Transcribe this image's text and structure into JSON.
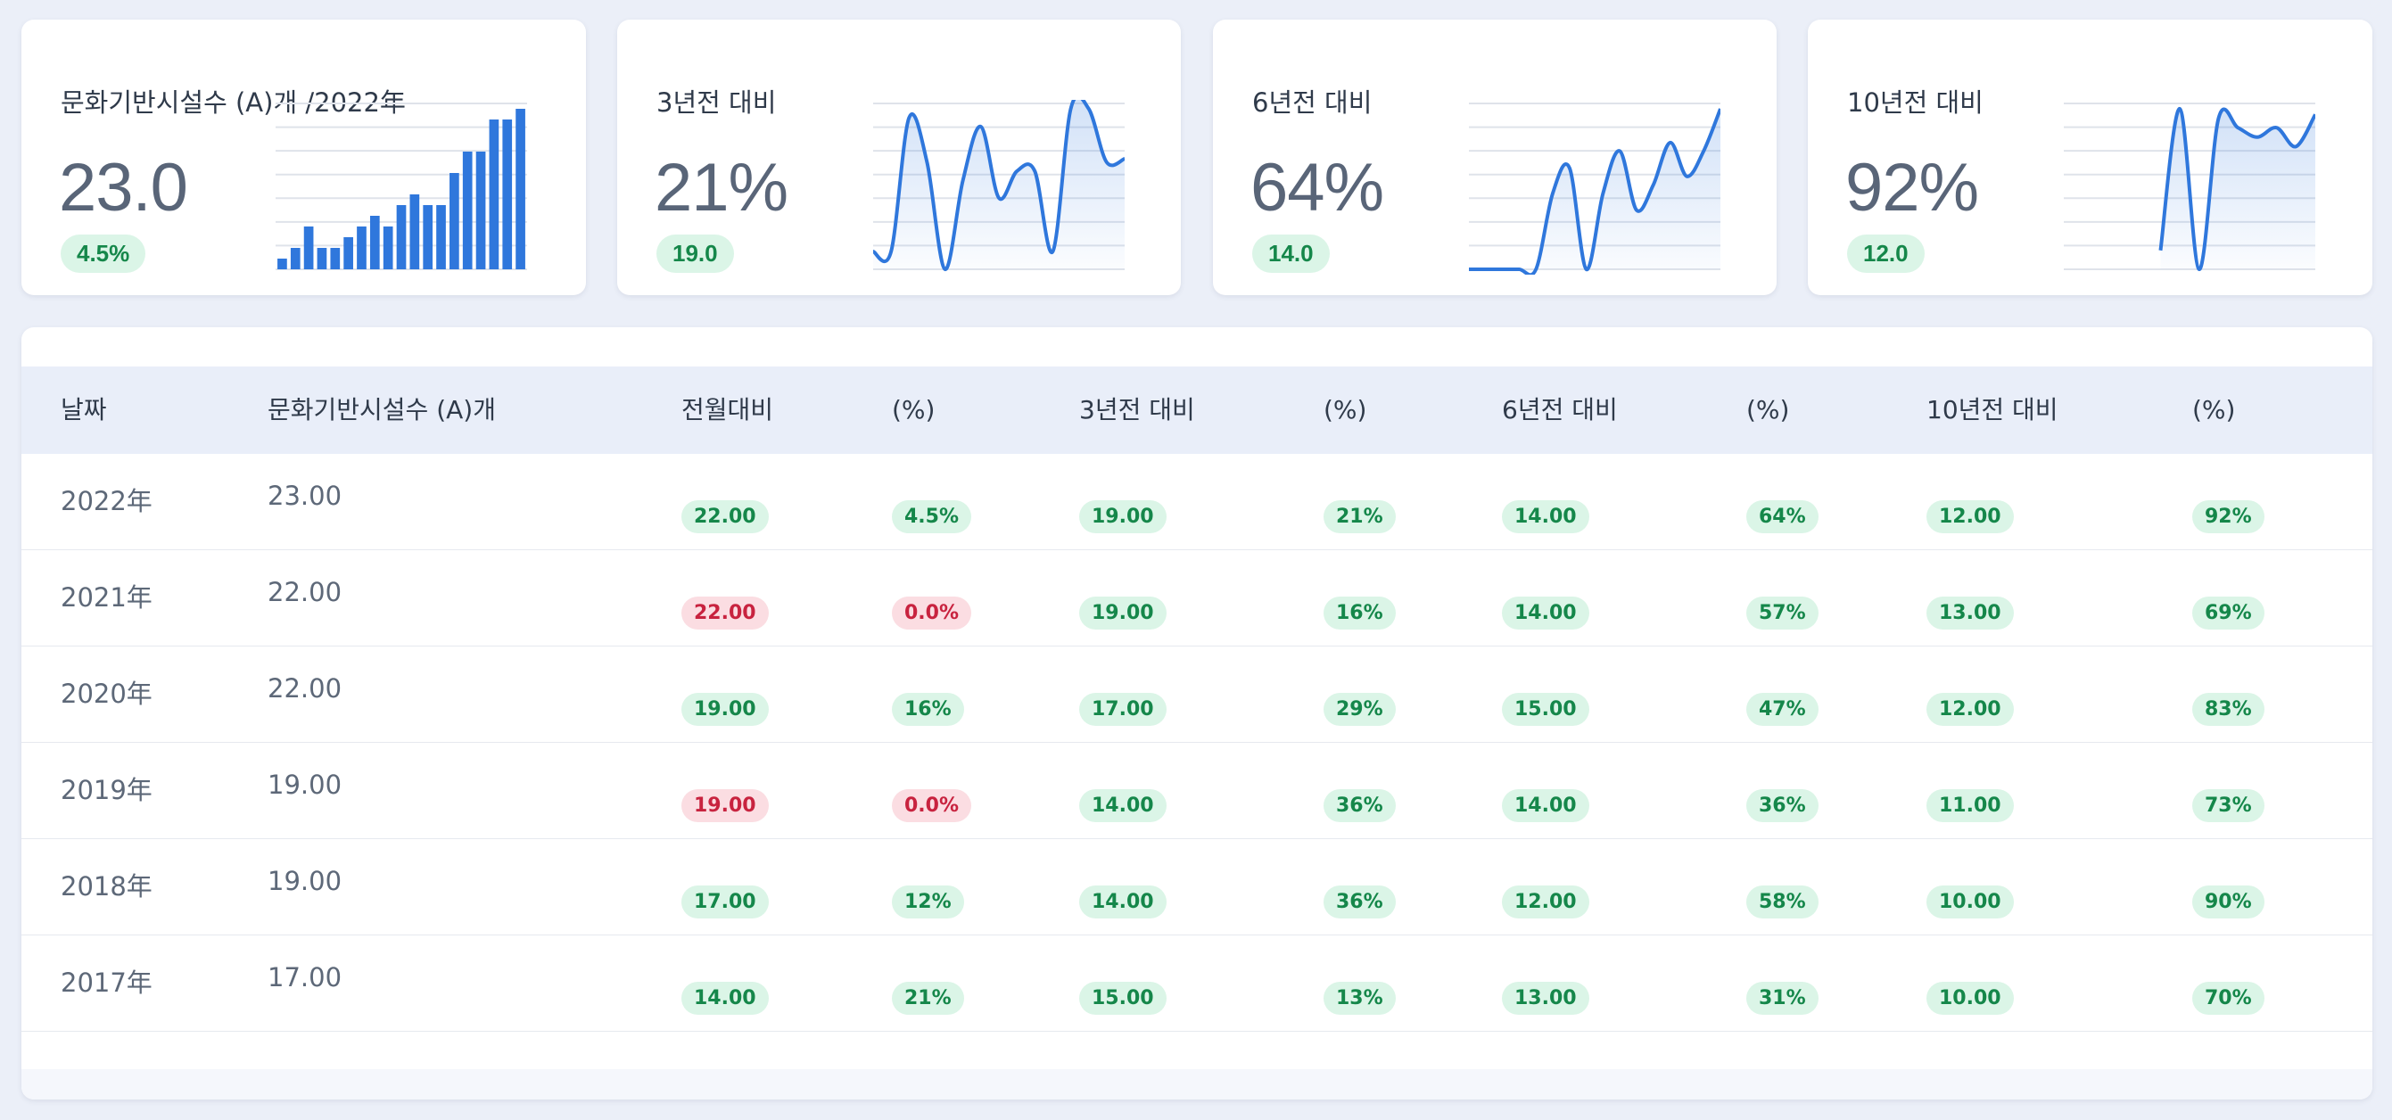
{
  "cards": [
    {
      "title": "문화기반시설수 (A)개 /2022年",
      "value": "23.0",
      "badge": "4.5%",
      "chart_type": "bar",
      "values": [
        1,
        2,
        4,
        2,
        2,
        3,
        4,
        5,
        4,
        6,
        7,
        6,
        6,
        9,
        11,
        11,
        14,
        14,
        15
      ]
    },
    {
      "title": "3년전 대비",
      "value": "21%",
      "badge": "19.0",
      "chart_type": "area",
      "values": [
        0,
        0,
        75,
        50,
        -10,
        40,
        70,
        30,
        45,
        45,
        0,
        80,
        80,
        50,
        52
      ]
    },
    {
      "title": "6년전 대비",
      "value": "64%",
      "badge": "14.0",
      "chart_type": "area",
      "values": [
        0,
        0,
        0,
        0,
        0,
        45,
        60,
        0,
        45,
        70,
        35,
        50,
        75,
        55,
        70,
        95
      ]
    },
    {
      "title": "10년전 대비",
      "value": "92%",
      "badge": "12.0",
      "chart_type": "area",
      "values": [
        null,
        null,
        null,
        null,
        null,
        10,
        85,
        0,
        80,
        75,
        70,
        75,
        65,
        82
      ]
    }
  ],
  "table": {
    "headers": [
      "날짜",
      "문화기반시설수 (A)개",
      "전월대비",
      "(%)",
      "3년전 대비",
      "(%)",
      "6년전 대비",
      "(%)",
      "10년전 대비",
      "(%)"
    ],
    "rows": [
      {
        "date": "2022年",
        "value": "23.00",
        "cells": [
          {
            "text": "22.00",
            "state": "pos"
          },
          {
            "text": "4.5%",
            "state": "pos"
          },
          {
            "text": "19.00",
            "state": "pos"
          },
          {
            "text": "21%",
            "state": "pos"
          },
          {
            "text": "14.00",
            "state": "pos"
          },
          {
            "text": "64%",
            "state": "pos"
          },
          {
            "text": "12.00",
            "state": "pos"
          },
          {
            "text": "92%",
            "state": "pos"
          }
        ]
      },
      {
        "date": "2021年",
        "value": "22.00",
        "cells": [
          {
            "text": "22.00",
            "state": "neg"
          },
          {
            "text": "0.0%",
            "state": "neg"
          },
          {
            "text": "19.00",
            "state": "pos"
          },
          {
            "text": "16%",
            "state": "pos"
          },
          {
            "text": "14.00",
            "state": "pos"
          },
          {
            "text": "57%",
            "state": "pos"
          },
          {
            "text": "13.00",
            "state": "pos"
          },
          {
            "text": "69%",
            "state": "pos"
          }
        ]
      },
      {
        "date": "2020年",
        "value": "22.00",
        "cells": [
          {
            "text": "19.00",
            "state": "pos"
          },
          {
            "text": "16%",
            "state": "pos"
          },
          {
            "text": "17.00",
            "state": "pos"
          },
          {
            "text": "29%",
            "state": "pos"
          },
          {
            "text": "15.00",
            "state": "pos"
          },
          {
            "text": "47%",
            "state": "pos"
          },
          {
            "text": "12.00",
            "state": "pos"
          },
          {
            "text": "83%",
            "state": "pos"
          }
        ]
      },
      {
        "date": "2019年",
        "value": "19.00",
        "cells": [
          {
            "text": "19.00",
            "state": "neg"
          },
          {
            "text": "0.0%",
            "state": "neg"
          },
          {
            "text": "14.00",
            "state": "pos"
          },
          {
            "text": "36%",
            "state": "pos"
          },
          {
            "text": "14.00",
            "state": "pos"
          },
          {
            "text": "36%",
            "state": "pos"
          },
          {
            "text": "11.00",
            "state": "pos"
          },
          {
            "text": "73%",
            "state": "pos"
          }
        ]
      },
      {
        "date": "2018年",
        "value": "19.00",
        "cells": [
          {
            "text": "17.00",
            "state": "pos"
          },
          {
            "text": "12%",
            "state": "pos"
          },
          {
            "text": "14.00",
            "state": "pos"
          },
          {
            "text": "36%",
            "state": "pos"
          },
          {
            "text": "12.00",
            "state": "pos"
          },
          {
            "text": "58%",
            "state": "pos"
          },
          {
            "text": "10.00",
            "state": "pos"
          },
          {
            "text": "90%",
            "state": "pos"
          }
        ]
      },
      {
        "date": "2017年",
        "value": "17.00",
        "cells": [
          {
            "text": "14.00",
            "state": "pos"
          },
          {
            "text": "21%",
            "state": "pos"
          },
          {
            "text": "15.00",
            "state": "pos"
          },
          {
            "text": "13%",
            "state": "pos"
          },
          {
            "text": "13.00",
            "state": "pos"
          },
          {
            "text": "31%",
            "state": "pos"
          },
          {
            "text": "10.00",
            "state": "pos"
          },
          {
            "text": "70%",
            "state": "pos"
          }
        ]
      }
    ]
  },
  "colors": {
    "accent": "#2f77dc",
    "positive_bg": "#dbf5e7",
    "positive_fg": "#15874a",
    "negative_bg": "#fbdde2",
    "negative_fg": "#c8233f"
  }
}
